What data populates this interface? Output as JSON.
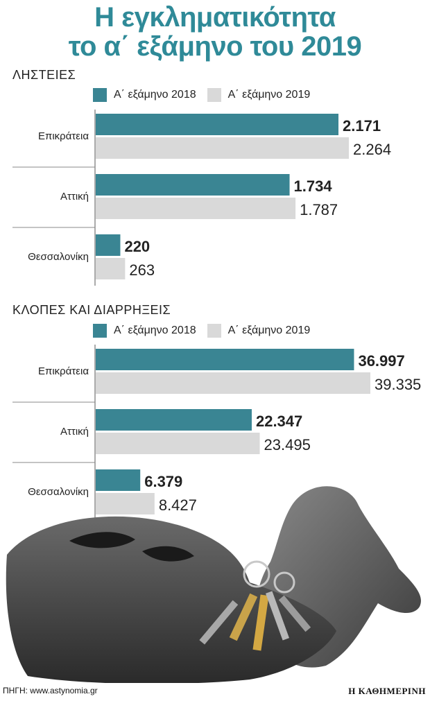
{
  "title_line1": "Η εγκληματικότητα",
  "title_line2": "το α΄ εξάμηνο του 2019",
  "colors": {
    "s2018": "#3a8593",
    "s2019": "#d9d9d9",
    "title": "#2f8a98",
    "axis": "#555555"
  },
  "chart_data": [
    {
      "type": "bar",
      "orientation": "horizontal",
      "title": "ΛΗΣΤΕΙΕΣ",
      "categories": [
        "Επικράτεια",
        "Αττική",
        "Θεσσαλονίκη"
      ],
      "series": [
        {
          "name": "Α΄ εξάμηνο 2018",
          "values": [
            2171,
            1734,
            220
          ],
          "labels": [
            "2.171",
            "1.734",
            "220"
          ]
        },
        {
          "name": "Α΄ εξάμηνο 2019",
          "values": [
            2264,
            1787,
            263
          ],
          "labels": [
            "2.264",
            "1.787",
            "263"
          ]
        }
      ],
      "legend": "top"
    },
    {
      "type": "bar",
      "orientation": "horizontal",
      "title": "ΚΛΟΠΕΣ ΚΑΙ ΔΙΑΡΡΗΞΕΙΣ",
      "categories": [
        "Επικράτεια",
        "Αττική",
        "Θεσσαλονίκη"
      ],
      "series": [
        {
          "name": "Α΄ εξάμηνο 2018",
          "values": [
            36997,
            22347,
            6379
          ],
          "labels": [
            "36.997",
            "22.347",
            "6.379"
          ]
        },
        {
          "name": "Α΄ εξάμηνο 2019",
          "values": [
            39335,
            23495,
            8427
          ],
          "labels": [
            "39.335",
            "23.495",
            "8.427"
          ]
        }
      ],
      "legend": "top"
    }
  ],
  "source": "ΠΗΓΗ: www.astynomia.gr",
  "publisher": "Η ΚΑΘΗΜΕΡΙΝΗ",
  "image": {
    "icon": "balaclava-gloves-keys-photo"
  }
}
